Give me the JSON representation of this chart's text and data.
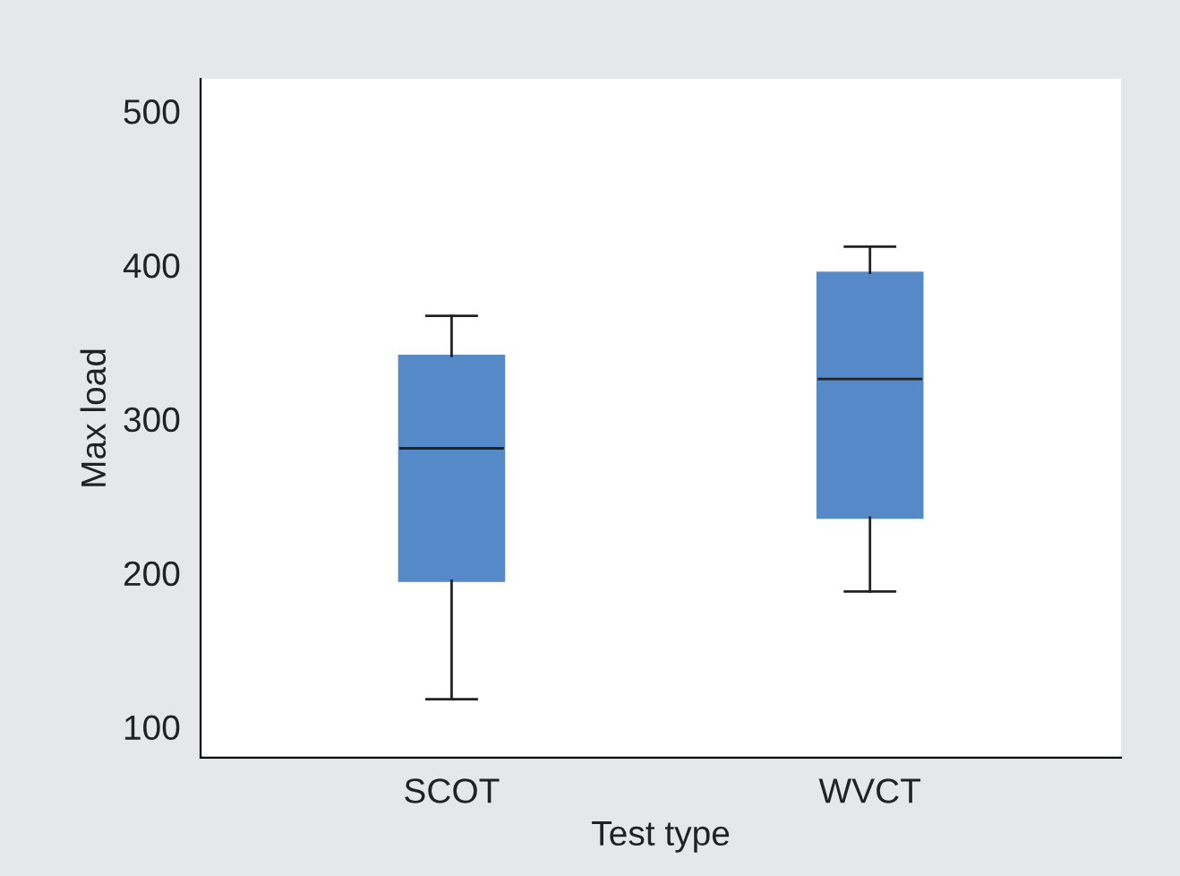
{
  "chart_data": {
    "type": "box",
    "xlabel": "Test type",
    "ylabel": "Max load",
    "categories": [
      "SCOT",
      "WVCT"
    ],
    "boxes": [
      {
        "low": 118,
        "q1": 195,
        "median": 281,
        "q3": 341,
        "high": 367
      },
      {
        "low": 188,
        "q1": 236,
        "median": 326,
        "q3": 395,
        "high": 412
      }
    ],
    "color": "#5589c8",
    "ylim": [
      80,
      521
    ],
    "yticks": [
      100,
      200,
      300,
      400,
      500
    ],
    "grid": false
  }
}
